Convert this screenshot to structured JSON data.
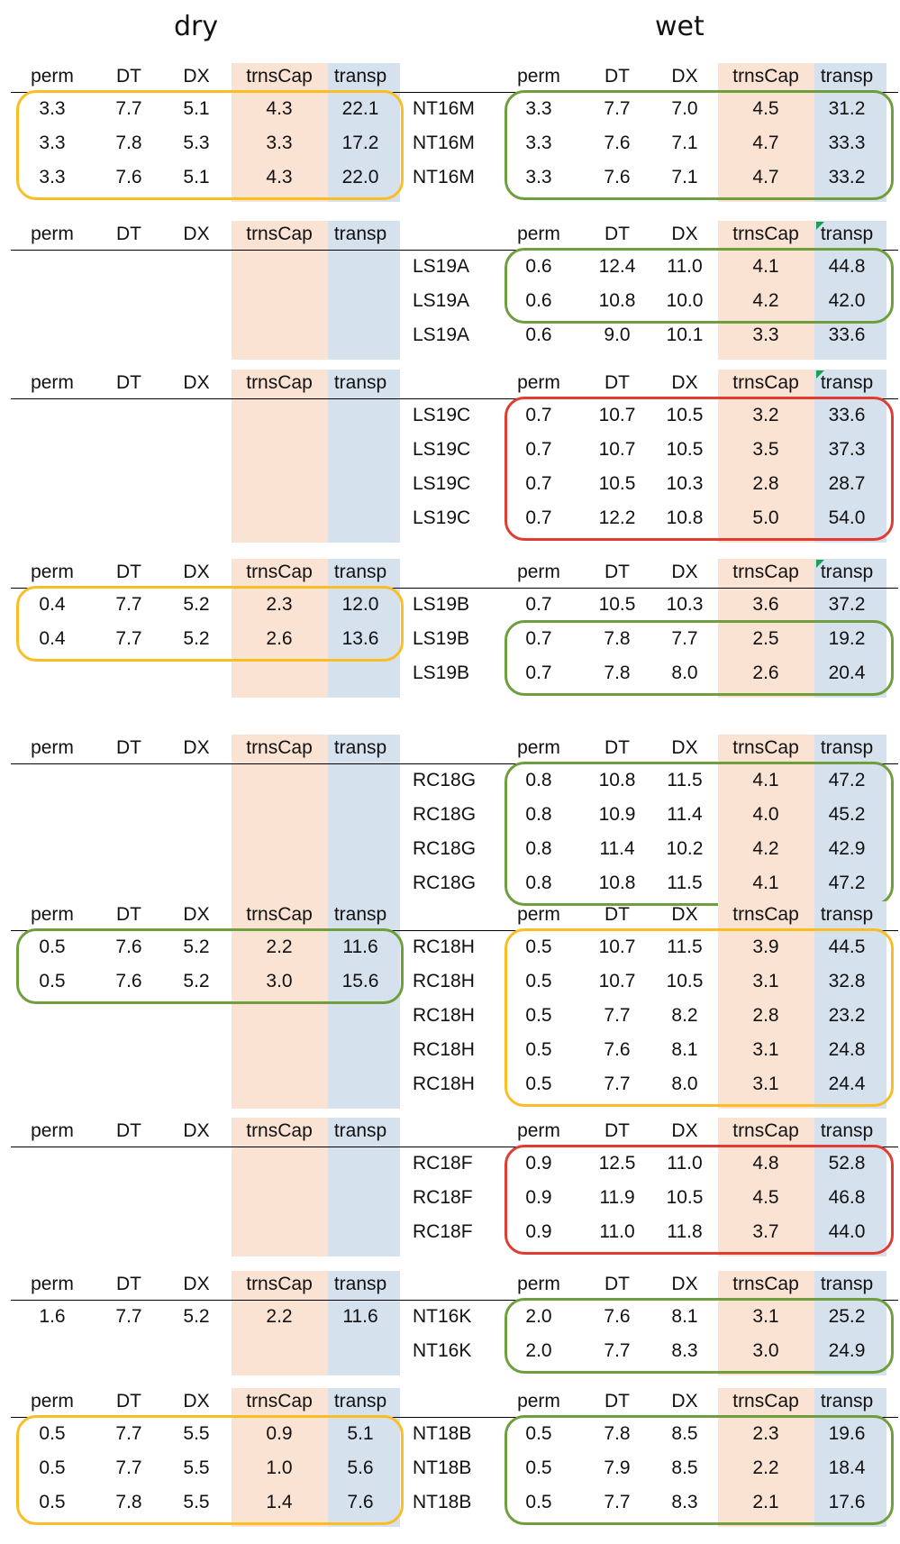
{
  "titles": {
    "dry": "dry",
    "wet": "wet"
  },
  "columns": [
    "perm",
    "DT",
    "DX",
    "trnsCap",
    "transp"
  ],
  "colors": {
    "trnsCap_band": "#fbe3d4",
    "transp_band": "#d6e1ee",
    "yellow_box": "#fbbd24",
    "green_box": "#6e9e3d",
    "red_box": "#e03c31"
  },
  "blocks": [
    {
      "dry": [
        [
          "3.3",
          "7.7",
          "5.1",
          "4.3",
          "22.1"
        ],
        [
          "3.3",
          "7.8",
          "5.3",
          "3.3",
          "17.2"
        ],
        [
          "3.3",
          "7.6",
          "5.1",
          "4.3",
          "22.0"
        ]
      ],
      "labels": [
        "NT16M",
        "NT16M",
        "NT16M"
      ],
      "wet": [
        [
          "3.3",
          "7.7",
          "7.0",
          "4.5",
          "31.2"
        ],
        [
          "3.3",
          "7.6",
          "7.1",
          "4.7",
          "33.3"
        ],
        [
          "3.3",
          "7.6",
          "7.1",
          "4.7",
          "33.2"
        ]
      ]
    },
    {
      "dry": [],
      "labels": [
        "LS19A",
        "LS19A",
        "LS19A"
      ],
      "wet": [
        [
          "0.6",
          "12.4",
          "11.0",
          "4.1",
          "44.8"
        ],
        [
          "0.6",
          "10.8",
          "10.0",
          "4.2",
          "42.0"
        ],
        [
          "0.6",
          "9.0",
          "10.1",
          "3.3",
          "33.6"
        ]
      ]
    },
    {
      "dry": [],
      "labels": [
        "LS19C",
        "LS19C",
        "LS19C",
        "LS19C"
      ],
      "wet": [
        [
          "0.7",
          "10.7",
          "10.5",
          "3.2",
          "33.6"
        ],
        [
          "0.7",
          "10.7",
          "10.5",
          "3.5",
          "37.3"
        ],
        [
          "0.7",
          "10.5",
          "10.3",
          "2.8",
          "28.7"
        ],
        [
          "0.7",
          "12.2",
          "10.8",
          "5.0",
          "54.0"
        ]
      ]
    },
    {
      "dry": [
        [
          "0.4",
          "7.7",
          "5.2",
          "2.3",
          "12.0"
        ],
        [
          "0.4",
          "7.7",
          "5.2",
          "2.6",
          "13.6"
        ]
      ],
      "labels": [
        "LS19B",
        "LS19B",
        "LS19B"
      ],
      "wet": [
        [
          "0.7",
          "10.5",
          "10.3",
          "3.6",
          "37.2"
        ],
        [
          "0.7",
          "7.8",
          "7.7",
          "2.5",
          "19.2"
        ],
        [
          "0.7",
          "7.8",
          "8.0",
          "2.6",
          "20.4"
        ]
      ]
    },
    {
      "dry": [],
      "labels": [
        "RC18G",
        "RC18G",
        "RC18G",
        "RC18G"
      ],
      "wet": [
        [
          "0.8",
          "10.8",
          "11.5",
          "4.1",
          "47.2"
        ],
        [
          "0.8",
          "10.9",
          "11.4",
          "4.0",
          "45.2"
        ],
        [
          "0.8",
          "11.4",
          "10.2",
          "4.2",
          "42.9"
        ],
        [
          "0.8",
          "10.8",
          "11.5",
          "4.1",
          "47.2"
        ]
      ]
    },
    {
      "dry": [
        [
          "0.5",
          "7.6",
          "5.2",
          "2.2",
          "11.6"
        ],
        [
          "0.5",
          "7.6",
          "5.2",
          "3.0",
          "15.6"
        ]
      ],
      "labels": [
        "RC18H",
        "RC18H",
        "RC18H",
        "RC18H",
        "RC18H"
      ],
      "wet": [
        [
          "0.5",
          "10.7",
          "11.5",
          "3.9",
          "44.5"
        ],
        [
          "0.5",
          "10.7",
          "10.5",
          "3.1",
          "32.8"
        ],
        [
          "0.5",
          "7.7",
          "8.2",
          "2.8",
          "23.2"
        ],
        [
          "0.5",
          "7.6",
          "8.1",
          "3.1",
          "24.8"
        ],
        [
          "0.5",
          "7.7",
          "8.0",
          "3.1",
          "24.4"
        ]
      ]
    },
    {
      "dry": [],
      "labels": [
        "RC18F",
        "RC18F",
        "RC18F"
      ],
      "wet": [
        [
          "0.9",
          "12.5",
          "11.0",
          "4.8",
          "52.8"
        ],
        [
          "0.9",
          "11.9",
          "10.5",
          "4.5",
          "46.8"
        ],
        [
          "0.9",
          "11.0",
          "11.8",
          "3.7",
          "44.0"
        ]
      ]
    },
    {
      "dry": [
        [
          "1.6",
          "7.7",
          "5.2",
          "2.2",
          "11.6"
        ]
      ],
      "labels": [
        "NT16K",
        "NT16K"
      ],
      "wet": [
        [
          "2.0",
          "7.6",
          "8.1",
          "3.1",
          "25.2"
        ],
        [
          "2.0",
          "7.7",
          "8.3",
          "3.0",
          "24.9"
        ]
      ]
    },
    {
      "dry": [
        [
          "0.5",
          "7.7",
          "5.5",
          "0.9",
          "5.1"
        ],
        [
          "0.5",
          "7.7",
          "5.5",
          "1.0",
          "5.6"
        ],
        [
          "0.5",
          "7.8",
          "5.5",
          "1.4",
          "7.6"
        ]
      ],
      "labels": [
        "NT18B",
        "NT18B",
        "NT18B"
      ],
      "wet": [
        [
          "0.5",
          "7.8",
          "8.5",
          "2.3",
          "19.6"
        ],
        [
          "0.5",
          "7.9",
          "8.5",
          "2.2",
          "18.4"
        ],
        [
          "0.5",
          "7.7",
          "8.3",
          "2.1",
          "17.6"
        ]
      ]
    }
  ]
}
